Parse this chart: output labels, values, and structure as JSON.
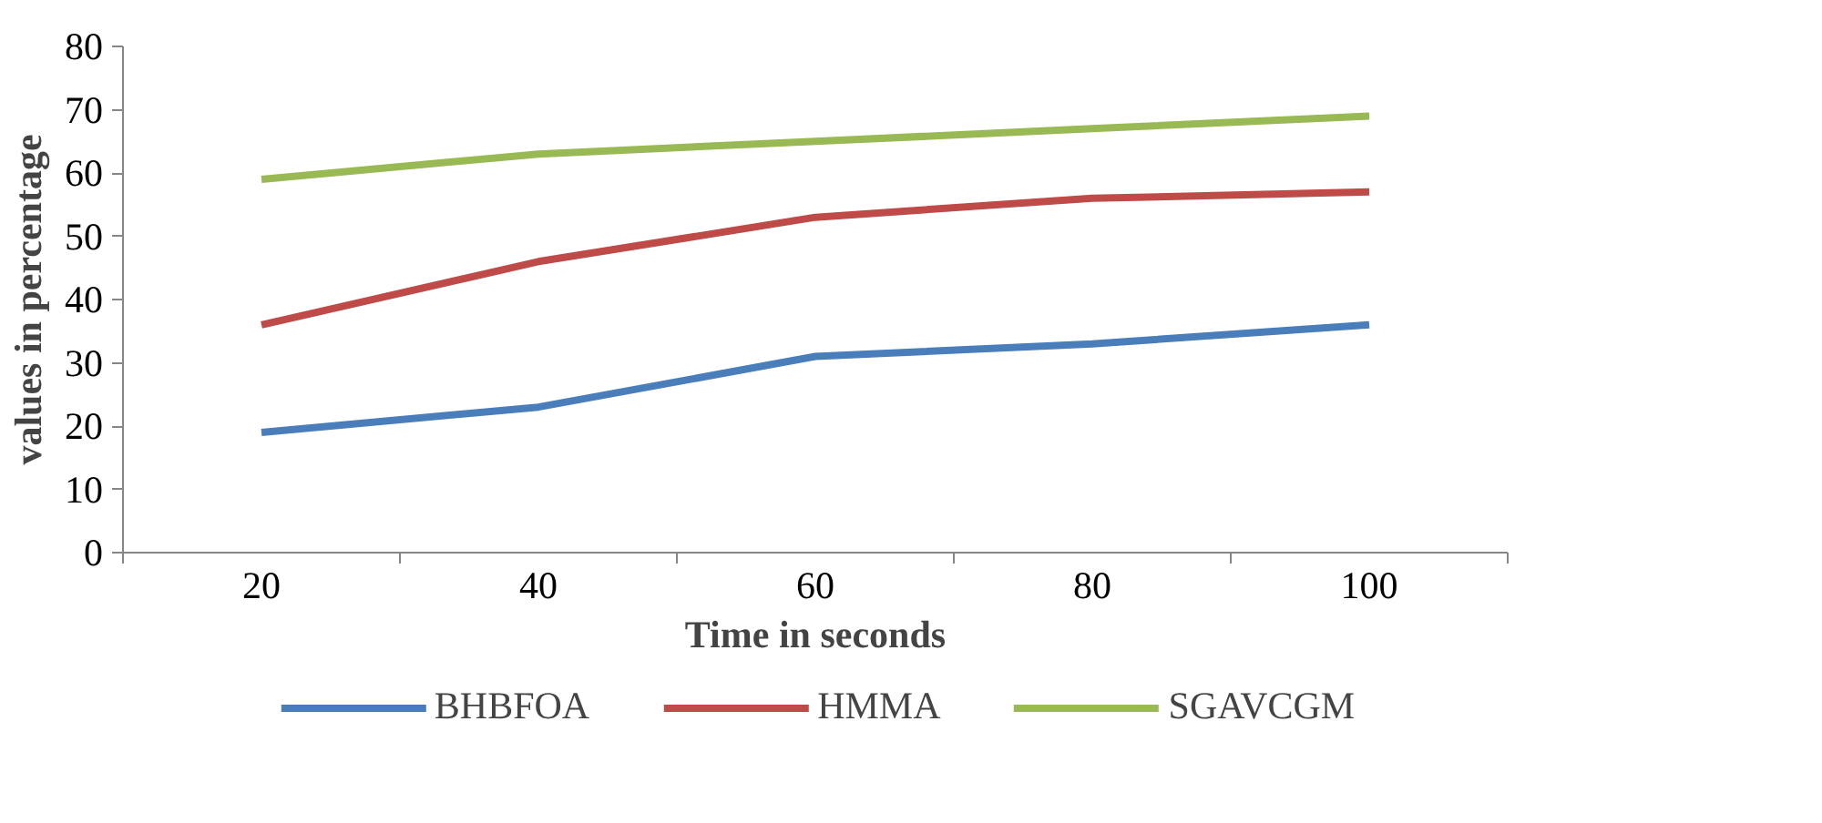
{
  "chart_data": {
    "type": "line",
    "xlabel": "Time in seconds",
    "ylabel": "values in percentage",
    "categories": [
      "20",
      "40",
      "60",
      "80",
      "100"
    ],
    "series": [
      {
        "name": "BHBFOA",
        "color": "#4a7ebb",
        "values": [
          19,
          23,
          31,
          33,
          36
        ]
      },
      {
        "name": "HMMA",
        "color": "#be4b48",
        "values": [
          36,
          46,
          53,
          56,
          57
        ]
      },
      {
        "name": "SGAVCGM",
        "color": "#98b954",
        "values": [
          59,
          63,
          65,
          67,
          69
        ]
      }
    ],
    "ylim": [
      0,
      80
    ],
    "yticks": [
      0,
      10,
      20,
      30,
      40,
      50,
      60,
      70,
      80
    ],
    "grid": false,
    "legend": "bottom",
    "line_style": "solid"
  }
}
